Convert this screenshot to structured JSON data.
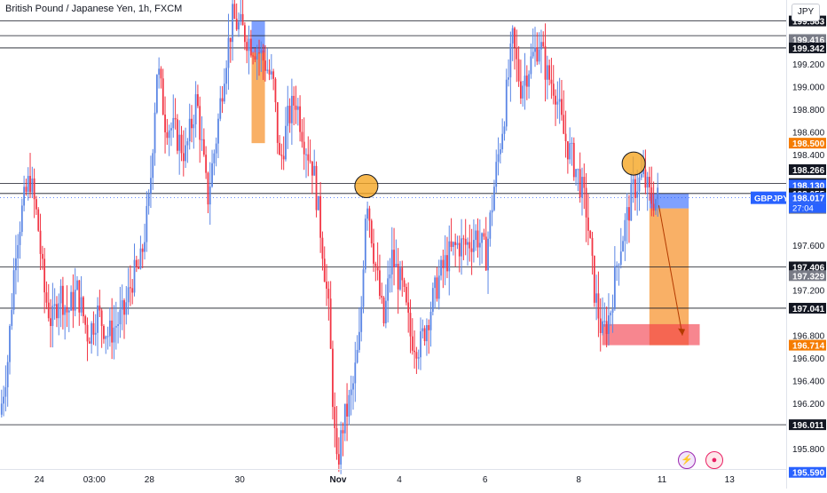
{
  "header": {
    "title": "British Pound / Japanese Yen, 1h, FXCM",
    "currency": "JPY"
  },
  "chart_data": {
    "type": "candlestick",
    "symbol": "GBPJPY",
    "ylim": [
      195.5,
      199.75
    ],
    "y_ticks": [
      195.8,
      196.2,
      196.4,
      196.6,
      196.8,
      197.2,
      197.6,
      198.0,
      198.4,
      198.6,
      198.8,
      199.0,
      199.2
    ],
    "y_tick_labels": [
      "195.800",
      "196.200",
      "196.400",
      "196.600",
      "196.800",
      "197.200",
      "197.600",
      "198.000",
      "198.400",
      "198.600",
      "198.800",
      "199.000",
      "199.200"
    ],
    "x_ticks": [
      {
        "label": "24",
        "at": 0.05
      },
      {
        "label": "03:00",
        "at": 0.12
      },
      {
        "label": "28",
        "at": 0.19
      },
      {
        "label": "30",
        "at": 0.305
      },
      {
        "label": "Nov",
        "at": 0.43,
        "bold": true
      },
      {
        "label": "4",
        "at": 0.508
      },
      {
        "label": "6",
        "at": 0.617
      },
      {
        "label": "8",
        "at": 0.736
      },
      {
        "label": "11",
        "at": 0.842
      },
      {
        "label": "13",
        "at": 0.928
      }
    ],
    "close_points": [
      [
        0.0,
        196.1
      ],
      [
        0.01,
        196.6
      ],
      [
        0.02,
        197.6
      ],
      [
        0.028,
        197.9
      ],
      [
        0.038,
        198.2
      ],
      [
        0.048,
        197.8
      ],
      [
        0.056,
        197.2
      ],
      [
        0.066,
        196.9
      ],
      [
        0.076,
        197.2
      ],
      [
        0.086,
        197.0
      ],
      [
        0.098,
        197.2
      ],
      [
        0.112,
        196.8
      ],
      [
        0.124,
        197.0
      ],
      [
        0.138,
        196.8
      ],
      [
        0.148,
        196.9
      ],
      [
        0.158,
        197.0
      ],
      [
        0.168,
        197.3
      ],
      [
        0.178,
        197.4
      ],
      [
        0.19,
        198.0
      ],
      [
        0.2,
        199.2
      ],
      [
        0.21,
        198.7
      ],
      [
        0.222,
        198.6
      ],
      [
        0.236,
        198.4
      ],
      [
        0.25,
        198.9
      ],
      [
        0.264,
        198.0
      ],
      [
        0.276,
        198.6
      ],
      [
        0.286,
        199.2
      ],
      [
        0.296,
        199.6
      ],
      [
        0.308,
        199.5
      ],
      [
        0.318,
        199.4
      ],
      [
        0.33,
        199.3
      ],
      [
        0.338,
        199.2
      ],
      [
        0.348,
        199.0
      ],
      [
        0.356,
        198.3
      ],
      [
        0.366,
        198.7
      ],
      [
        0.376,
        198.9
      ],
      [
        0.388,
        198.5
      ],
      [
        0.398,
        198.3
      ],
      [
        0.41,
        197.6
      ],
      [
        0.418,
        197.0
      ],
      [
        0.428,
        195.6
      ],
      [
        0.436,
        196.0
      ],
      [
        0.448,
        196.3
      ],
      [
        0.458,
        196.8
      ],
      [
        0.466,
        198.1
      ],
      [
        0.476,
        197.5
      ],
      [
        0.488,
        196.9
      ],
      [
        0.498,
        197.5
      ],
      [
        0.512,
        197.2
      ],
      [
        0.522,
        196.8
      ],
      [
        0.534,
        196.7
      ],
      [
        0.546,
        197.0
      ],
      [
        0.558,
        197.3
      ],
      [
        0.57,
        197.5
      ],
      [
        0.582,
        197.6
      ],
      [
        0.594,
        197.6
      ],
      [
        0.606,
        197.7
      ],
      [
        0.618,
        197.5
      ],
      [
        0.63,
        198.2
      ],
      [
        0.642,
        198.8
      ],
      [
        0.652,
        199.4
      ],
      [
        0.662,
        199.0
      ],
      [
        0.674,
        199.2
      ],
      [
        0.686,
        199.4
      ],
      [
        0.696,
        199.1
      ],
      [
        0.706,
        199.0
      ],
      [
        0.716,
        198.6
      ],
      [
        0.726,
        198.4
      ],
      [
        0.736,
        198.2
      ],
      [
        0.746,
        197.9
      ],
      [
        0.756,
        197.2
      ],
      [
        0.766,
        196.8
      ],
      [
        0.776,
        197.0
      ],
      [
        0.786,
        197.5
      ],
      [
        0.796,
        197.8
      ],
      [
        0.806,
        198.1
      ],
      [
        0.818,
        198.2
      ],
      [
        0.828,
        198.0
      ],
      [
        0.838,
        198.017
      ]
    ],
    "horizontal_lines": [
      {
        "price": 199.58
      },
      {
        "price": 199.45
      },
      {
        "price": 199.342
      },
      {
        "price": 198.143
      },
      {
        "price": 198.055
      },
      {
        "price": 197.406
      },
      {
        "price": 197.041
      },
      {
        "price": 196.011
      }
    ],
    "price_labels": [
      {
        "price": 199.58,
        "text": "199.583",
        "bg": "#131722",
        "fg": "#ffffff"
      },
      {
        "price": 199.416,
        "text": "199.416",
        "bg": "#787b86",
        "fg": "#ffffff"
      },
      {
        "price": 199.342,
        "text": "199.342",
        "bg": "#131722",
        "fg": "#ffffff"
      },
      {
        "price": 198.5,
        "text": "198.500",
        "bg": "#f57c00",
        "fg": "#ffffff"
      },
      {
        "price": 198.266,
        "text": "198.266",
        "bg": "#131722",
        "fg": "#ffffff"
      },
      {
        "price": 198.143,
        "text": "198.143",
        "bg": "#131722",
        "fg": "#ffffff"
      },
      {
        "price": 198.13,
        "text": "198.130",
        "bg": "#2962ff",
        "fg": "#ffffff"
      },
      {
        "price": 198.055,
        "text": "198.055",
        "bg": "#131722",
        "fg": "#ffffff"
      },
      {
        "price": 198.017,
        "text": "198.017",
        "bg": "#2962ff",
        "fg": "#ffffff"
      },
      {
        "price": 197.923,
        "text": "197.923",
        "bg": "#787b86",
        "fg": "#ffffff"
      },
      {
        "price": 197.406,
        "text": "197.406",
        "bg": "#131722",
        "fg": "#ffffff"
      },
      {
        "price": 197.329,
        "text": "197.329",
        "bg": "#787b86",
        "fg": "#ffffff"
      },
      {
        "price": 197.041,
        "text": "197.041",
        "bg": "#131722",
        "fg": "#ffffff"
      },
      {
        "price": 196.714,
        "text": "196.714",
        "bg": "#f57c00",
        "fg": "#ffffff"
      },
      {
        "price": 196.011,
        "text": "196.011",
        "bg": "#131722",
        "fg": "#ffffff"
      },
      {
        "price": 195.59,
        "text": "195.590",
        "bg": "#2962ff",
        "fg": "#ffffff"
      }
    ],
    "symbol_tag": {
      "text": "GBPJPY",
      "price": 198.017
    },
    "countdown": "27:04",
    "circles": [
      {
        "x": 0.466,
        "price": 198.12
      },
      {
        "x": 0.806,
        "price": 198.32
      }
    ],
    "zones": [
      {
        "x0": 0.32,
        "x1": 0.337,
        "p0": 199.3,
        "p1": 199.58,
        "color": "#2962ff"
      },
      {
        "x0": 0.32,
        "x1": 0.337,
        "p0": 198.5,
        "p1": 199.3,
        "color": "#f57c00"
      },
      {
        "x0": 0.826,
        "x1": 0.876,
        "p0": 197.923,
        "p1": 198.055,
        "color": "#2962ff"
      },
      {
        "x0": 0.826,
        "x1": 0.876,
        "p0": 196.714,
        "p1": 197.923,
        "color": "#f57c00"
      },
      {
        "x0": 0.766,
        "x1": 0.89,
        "p0": 196.714,
        "p1": 196.9,
        "color": "#f23645"
      }
    ],
    "arrow": {
      "x0": 0.838,
      "p0": 197.95,
      "x1": 0.868,
      "p1": 196.8
    },
    "colors": {
      "up": "#5b86e5",
      "down": "#f23645",
      "grid_line": "#131722",
      "last_price_dotted": "#2962ff"
    }
  }
}
